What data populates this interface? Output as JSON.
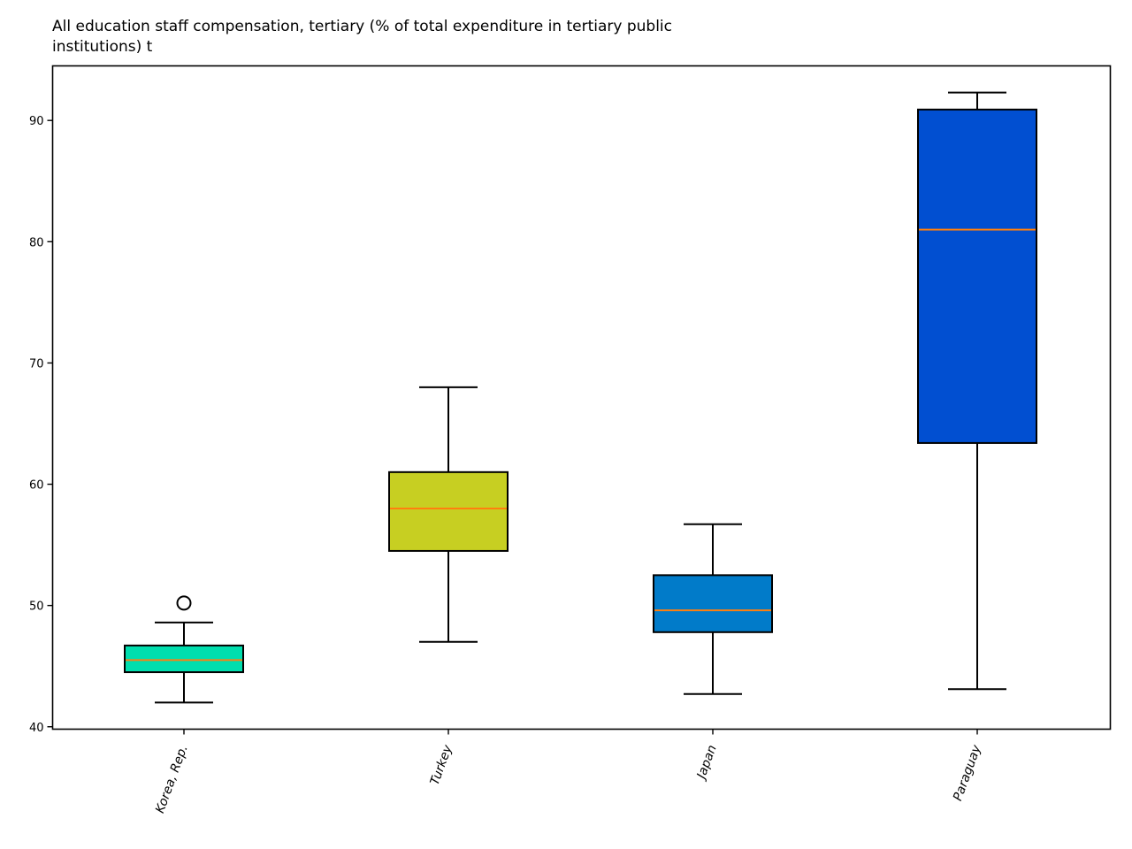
{
  "chart_data": {
    "type": "box",
    "title_lines": [
      "All education staff compensation, tertiary (% of total expenditure in tertiary public",
      "institutions) t"
    ],
    "xlabel": "",
    "ylabel": "",
    "ylim": [
      39.8,
      94.5
    ],
    "yticks": [
      40,
      50,
      60,
      70,
      80,
      90
    ],
    "grid": false,
    "legend": "none",
    "median_color": "#ff7f0e",
    "categories": [
      "Korea, Rep.",
      "Turkey",
      "Japan",
      "Paraguay"
    ],
    "boxes": [
      {
        "name": "Korea, Rep.",
        "whisker_low": 42.0,
        "q1": 44.5,
        "median": 45.5,
        "q3": 46.7,
        "whisker_high": 48.6,
        "outliers": [
          50.2
        ],
        "color": "#00deae"
      },
      {
        "name": "Turkey",
        "whisker_low": 47.0,
        "q1": 54.5,
        "median": 58.0,
        "q3": 61.0,
        "whisker_high": 68.0,
        "outliers": [],
        "color": "#c7cf22"
      },
      {
        "name": "Japan",
        "whisker_low": 42.7,
        "q1": 47.8,
        "median": 49.6,
        "q3": 52.5,
        "whisker_high": 56.7,
        "outliers": [],
        "color": "#017bc9"
      },
      {
        "name": "Paraguay",
        "whisker_low": 43.1,
        "q1": 63.4,
        "median": 81.0,
        "q3": 90.9,
        "whisker_high": 92.3,
        "outliers": [],
        "color": "#014fd1"
      }
    ]
  }
}
